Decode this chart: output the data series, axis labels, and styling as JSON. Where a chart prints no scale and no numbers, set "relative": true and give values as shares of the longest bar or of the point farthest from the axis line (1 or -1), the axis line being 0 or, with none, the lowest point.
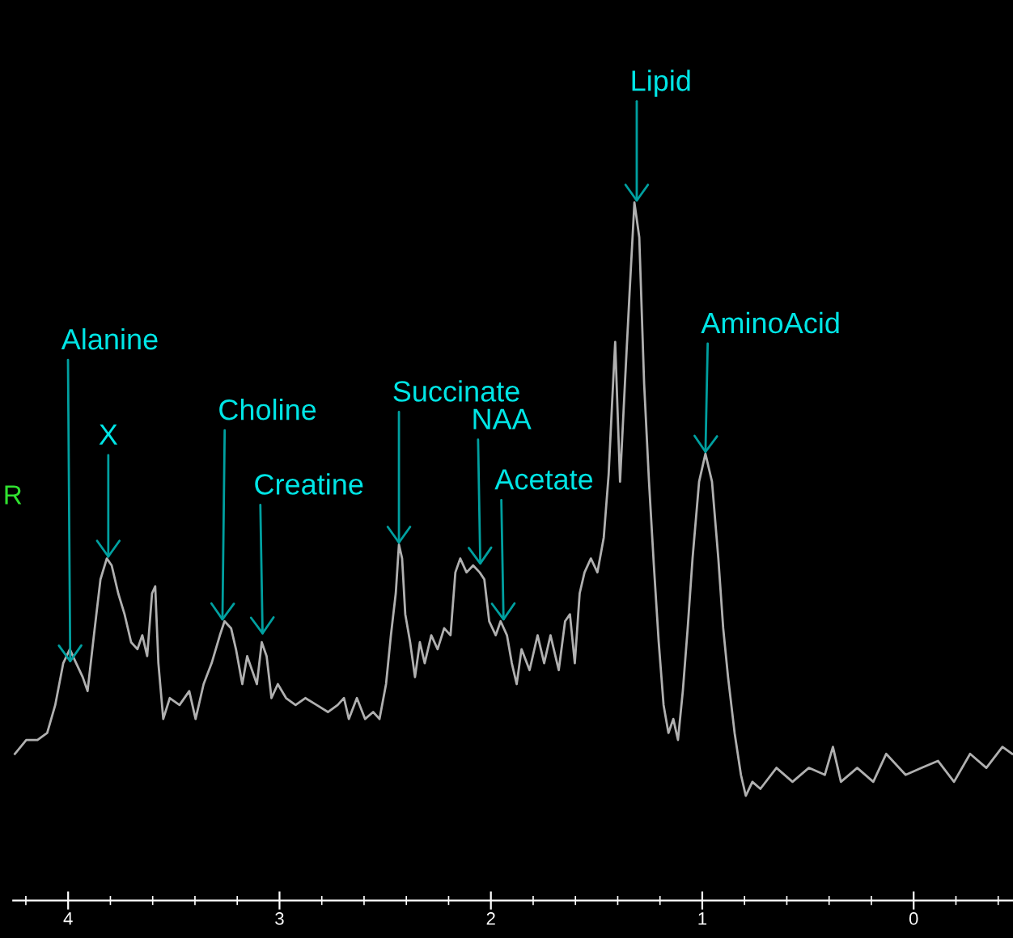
{
  "chart_data": {
    "type": "line",
    "relative": true,
    "xlim": [
      4.26,
      -0.47
    ],
    "xticks": [
      {
        "value": 4.2,
        "label": null
      },
      4,
      {
        "value": 3.8,
        "label": null
      },
      {
        "value": 3.6,
        "label": null
      },
      {
        "value": 3.4,
        "label": null
      },
      {
        "value": 3.2,
        "label": null
      },
      3,
      {
        "value": 2.8,
        "label": null
      },
      {
        "value": 2.6,
        "label": null
      },
      {
        "value": 2.4,
        "label": null
      },
      {
        "value": 2.2,
        "label": null
      },
      2,
      {
        "value": 1.8,
        "label": null
      },
      {
        "value": 1.6,
        "label": null
      },
      {
        "value": 1.4,
        "label": null
      },
      {
        "value": 1.2,
        "label": null
      },
      1,
      {
        "value": 0.8,
        "label": null
      },
      {
        "value": 0.6,
        "label": null
      },
      {
        "value": 0.4,
        "label": null
      },
      {
        "value": 0.2,
        "label": null
      },
      0,
      {
        "value": -0.2,
        "label": null
      },
      {
        "value": -0.4,
        "label": null
      }
    ],
    "series": [
      {
        "color": "#b0b0b0",
        "x": [
          4.252,
          4.198,
          4.145,
          4.099,
          4.061,
          4.023,
          3.992,
          3.962,
          3.931,
          3.908,
          3.878,
          3.847,
          3.817,
          3.794,
          3.763,
          3.733,
          3.702,
          3.672,
          3.649,
          3.626,
          3.603,
          3.588,
          3.573,
          3.55,
          3.519,
          3.473,
          3.427,
          3.397,
          3.359,
          3.321,
          3.282,
          3.26,
          3.229,
          3.206,
          3.176,
          3.153,
          3.13,
          3.107,
          3.084,
          3.061,
          3.038,
          3.008,
          2.969,
          2.924,
          2.878,
          2.824,
          2.771,
          2.725,
          2.695,
          2.672,
          2.634,
          2.595,
          2.557,
          2.527,
          2.496,
          2.473,
          2.45,
          2.435,
          2.42,
          2.405,
          2.382,
          2.359,
          2.336,
          2.313,
          2.282,
          2.252,
          2.221,
          2.191,
          2.168,
          2.145,
          2.115,
          2.084,
          2.053,
          2.031,
          2.008,
          1.977,
          1.954,
          1.924,
          1.901,
          1.878,
          1.855,
          1.817,
          1.779,
          1.748,
          1.718,
          1.679,
          1.649,
          1.626,
          1.603,
          1.58,
          1.557,
          1.527,
          1.496,
          1.466,
          1.443,
          1.427,
          1.412,
          1.389,
          1.366,
          1.344,
          1.321,
          1.298,
          1.275,
          1.252,
          1.229,
          1.206,
          1.183,
          1.16,
          1.137,
          1.115,
          1.092,
          1.069,
          1.046,
          1.015,
          0.985,
          0.954,
          0.924,
          0.901,
          0.878,
          0.847,
          0.817,
          0.794,
          0.763,
          0.725,
          0.649,
          0.573,
          0.496,
          0.42,
          0.382,
          0.344,
          0.267,
          0.191,
          0.13,
          0.038,
          -0.038,
          -0.115,
          -0.191,
          -0.267,
          -0.344,
          -0.42,
          -0.466
        ],
        "values": [
          0.21,
          0.23,
          0.23,
          0.24,
          0.28,
          0.34,
          0.36,
          0.34,
          0.32,
          0.3,
          0.38,
          0.46,
          0.49,
          0.48,
          0.44,
          0.41,
          0.37,
          0.36,
          0.38,
          0.35,
          0.44,
          0.45,
          0.34,
          0.26,
          0.29,
          0.28,
          0.3,
          0.26,
          0.31,
          0.34,
          0.38,
          0.4,
          0.39,
          0.36,
          0.31,
          0.35,
          0.33,
          0.31,
          0.37,
          0.35,
          0.29,
          0.31,
          0.29,
          0.28,
          0.29,
          0.28,
          0.27,
          0.28,
          0.29,
          0.26,
          0.29,
          0.26,
          0.27,
          0.26,
          0.31,
          0.38,
          0.44,
          0.51,
          0.49,
          0.41,
          0.37,
          0.32,
          0.37,
          0.34,
          0.38,
          0.36,
          0.39,
          0.38,
          0.47,
          0.49,
          0.47,
          0.48,
          0.47,
          0.46,
          0.4,
          0.38,
          0.4,
          0.38,
          0.34,
          0.31,
          0.36,
          0.33,
          0.38,
          0.34,
          0.38,
          0.33,
          0.4,
          0.41,
          0.34,
          0.44,
          0.47,
          0.49,
          0.47,
          0.52,
          0.61,
          0.71,
          0.8,
          0.6,
          0.74,
          0.87,
          1,
          0.95,
          0.74,
          0.6,
          0.48,
          0.37,
          0.28,
          0.24,
          0.26,
          0.23,
          0.3,
          0.39,
          0.49,
          0.6,
          0.64,
          0.6,
          0.49,
          0.39,
          0.32,
          0.24,
          0.18,
          0.15,
          0.17,
          0.16,
          0.19,
          0.17,
          0.19,
          0.18,
          0.22,
          0.17,
          0.19,
          0.17,
          0.21,
          0.18,
          0.19,
          0.2,
          0.17,
          0.21,
          0.19,
          0.22,
          0.21
        ]
      }
    ],
    "annotations": [
      {
        "text": "Alanine",
        "x": 3.99,
        "y": 0.34
      },
      {
        "text": "X",
        "x": 3.81,
        "y": 0.49
      },
      {
        "text": "Choline",
        "x": 3.27,
        "y": 0.4
      },
      {
        "text": "Creatine",
        "x": 3.08,
        "y": 0.38
      },
      {
        "text": "Succinate",
        "x": 2.435,
        "y": 0.51
      },
      {
        "text": "NAA",
        "x": 2.05,
        "y": 0.48
      },
      {
        "text": "Acetate",
        "x": 1.94,
        "y": 0.4
      },
      {
        "text": "Lipid",
        "x": 1.31,
        "y": 1.0
      },
      {
        "text": "AminoAcid",
        "x": 0.985,
        "y": 0.64
      },
      "R"
    ]
  }
}
